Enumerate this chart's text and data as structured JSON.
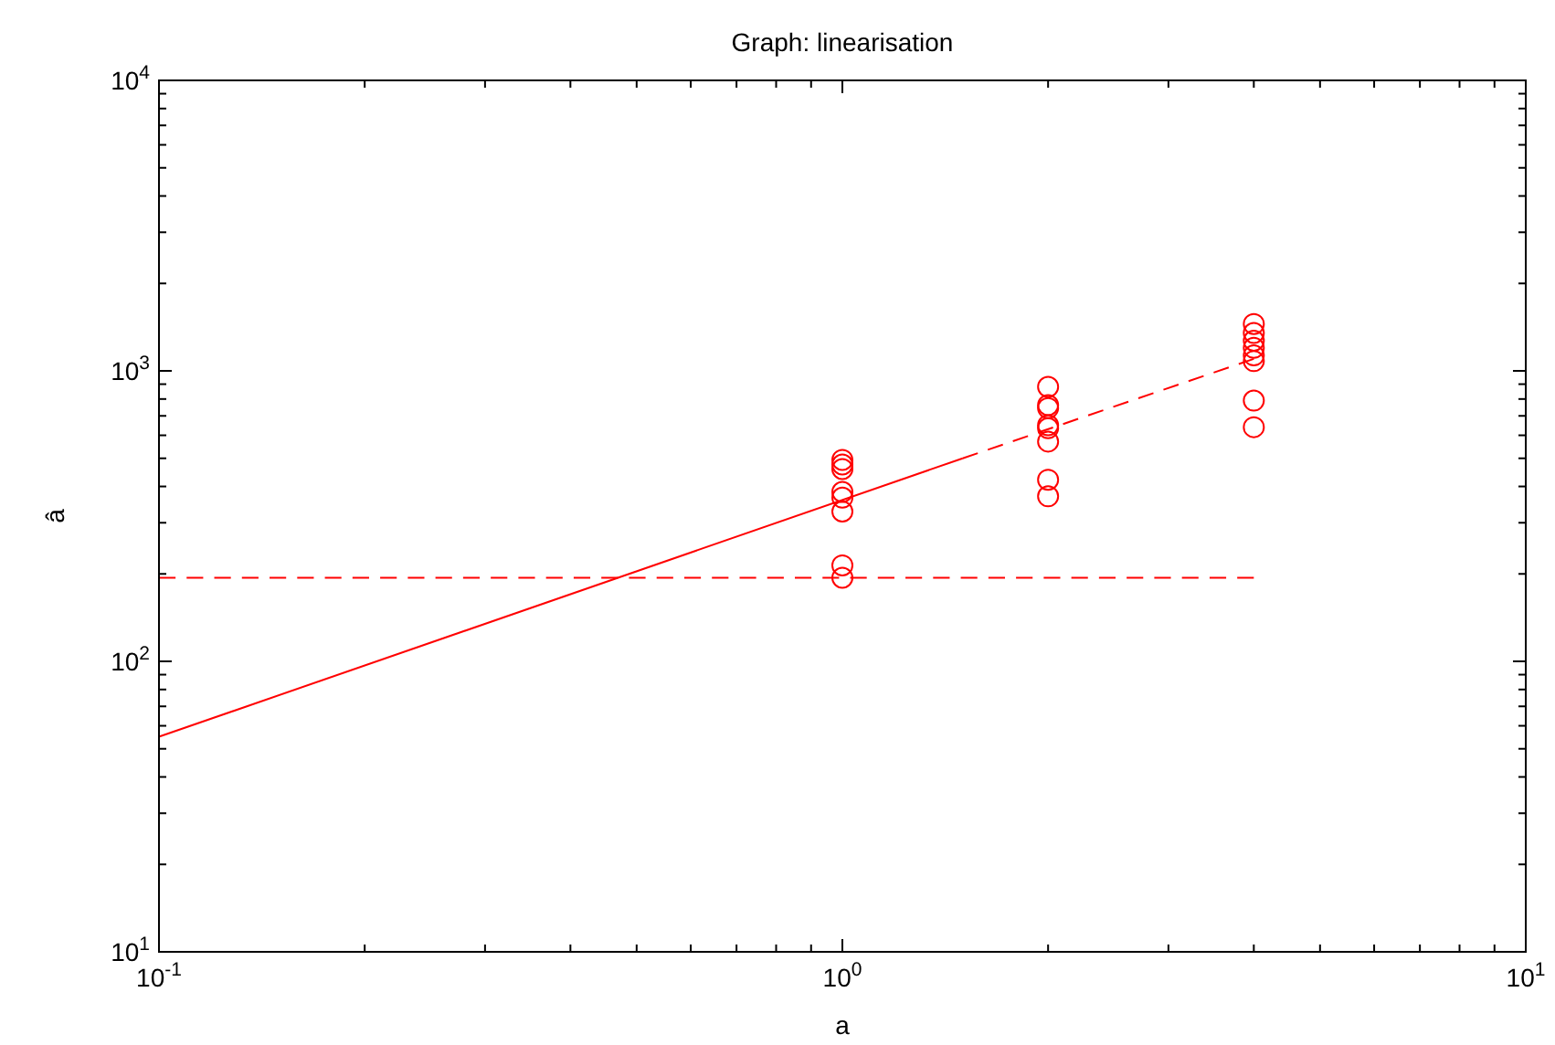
{
  "chart_data": {
    "type": "scatter",
    "title": "Graph: linearisation",
    "xlabel": "a",
    "ylabel": "â",
    "log": "xy",
    "xlim": [
      0.1,
      10
    ],
    "ylim": [
      10,
      10000
    ],
    "xticks": [
      {
        "value": 0.1,
        "label": "10$^{-1}$"
      },
      {
        "value": 1,
        "label": "10$^{0}$"
      },
      {
        "value": 10,
        "label": "10$^{1}$"
      }
    ],
    "yticks": [
      {
        "value": 10,
        "label": "10$^{1}$"
      },
      {
        "value": 100,
        "label": "10$^{2}$"
      },
      {
        "value": 1000,
        "label": "10$^{3}$"
      },
      {
        "value": 10000,
        "label": "10$^{4}$"
      }
    ],
    "grid": false,
    "series": [
      {
        "color": "#ff0000",
        "marker": "circle",
        "x": [
          1,
          1,
          1,
          1,
          1,
          1,
          1,
          1,
          2,
          2,
          2,
          2,
          2,
          2,
          2,
          2,
          4,
          4,
          4,
          4,
          4,
          4,
          4,
          4
        ],
        "values": [
          494,
          476,
          459,
          383,
          366,
          328,
          214,
          194,
          881,
          762,
          745,
          650,
          635,
          571,
          422,
          370,
          1450,
          1350,
          1270,
          1200,
          1130,
          1080,
          790,
          640
        ]
      },
      {
        "type": "line",
        "color": "#ff0000",
        "marker": "none",
        "line_style": "solid",
        "x": [
          0.1,
          1.5
        ],
        "values": [
          55,
          500
        ]
      },
      {
        "type": "line",
        "color": "#ff0000",
        "marker": "none",
        "line_style": "dashed",
        "x": [
          1.5,
          4
        ],
        "values": [
          500,
          1100
        ]
      },
      {
        "type": "line",
        "color": "#ff0000",
        "marker": "none",
        "line_style": "dashed",
        "x": [
          0.1,
          4
        ],
        "values": [
          194,
          194
        ]
      }
    ]
  }
}
